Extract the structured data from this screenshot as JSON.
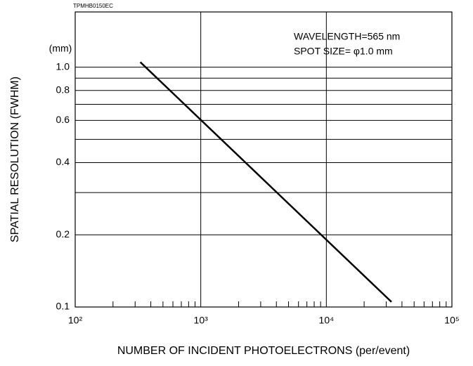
{
  "chart_data": {
    "type": "line",
    "code": "TPMHB0150EC",
    "unit": "(mm)",
    "annotations": [
      "WAVELENGTH=565 nm",
      "SPOT SIZE= φ1.0 mm"
    ],
    "xlabel": "NUMBER OF INCIDENT PHOTOELECTRONS (per/event)",
    "ylabel": "SPATIAL RESOLUTION (FWHM)",
    "xscale": "log",
    "yscale": "log",
    "grid": true,
    "xlim": [
      100,
      100000
    ],
    "xticks": [
      {
        "value": 100,
        "label": "10²"
      },
      {
        "value": 1000,
        "label": "10³"
      },
      {
        "value": 10000,
        "label": "10⁴"
      },
      {
        "value": 100000,
        "label": "10⁵"
      }
    ],
    "x_minor_ticks": [
      200,
      300,
      400,
      500,
      600,
      700,
      800,
      900,
      2000,
      3000,
      4000,
      5000,
      6000,
      7000,
      8000,
      9000,
      20000,
      30000,
      40000,
      50000,
      60000,
      70000,
      80000,
      90000
    ],
    "ylim": [
      0.1,
      1.7
    ],
    "yticks": [
      0.1,
      0.2,
      0.4,
      0.6,
      0.8,
      {
        "value": 1,
        "label": "1.0"
      }
    ],
    "y_minor_grid": [
      0.3,
      0.5,
      0.7,
      0.9
    ],
    "series": [
      {
        "color": "#000000",
        "x": [
          330,
          33000
        ],
        "values": [
          1.05,
          0.105
        ]
      }
    ]
  }
}
